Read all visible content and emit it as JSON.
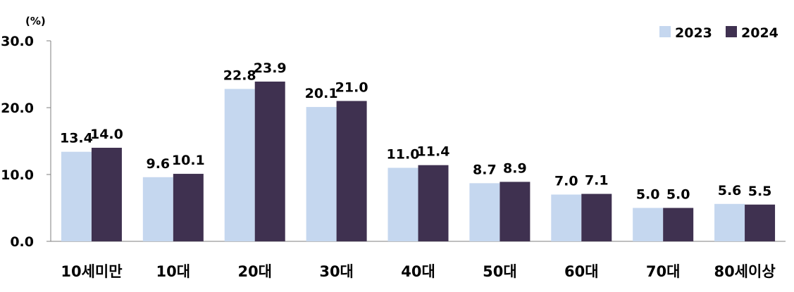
{
  "chart_data": {
    "type": "bar",
    "unit_label": "(%)",
    "categories": [
      "10세미만",
      "10대",
      "20대",
      "30대",
      "40대",
      "50대",
      "60대",
      "70대",
      "80세이상"
    ],
    "series": [
      {
        "name": "2023",
        "color": "#c5d7ef",
        "values": [
          13.4,
          9.6,
          22.8,
          20.1,
          11.0,
          8.7,
          7.0,
          5.0,
          5.6
        ]
      },
      {
        "name": "2024",
        "color": "#3f3150",
        "values": [
          14.0,
          10.1,
          23.9,
          21.0,
          11.4,
          8.9,
          7.1,
          5.0,
          5.5
        ]
      }
    ],
    "ylim": [
      0,
      30
    ],
    "yticks": [
      "0.0",
      "10.0",
      "20.0",
      "30.0"
    ],
    "grid": false,
    "legend_position": "top-right",
    "data_labels": true
  }
}
